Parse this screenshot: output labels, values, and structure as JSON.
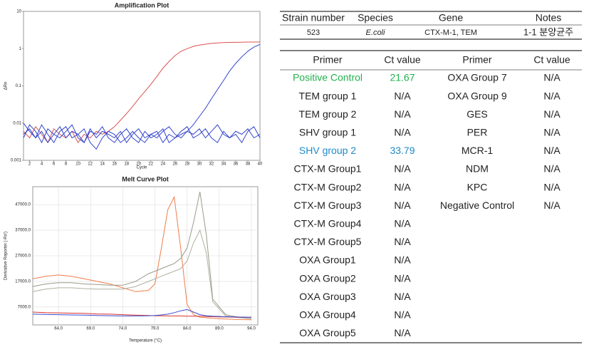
{
  "chart_data": [
    {
      "type": "line",
      "title": "Amplification Plot",
      "x_label": "Cycle",
      "y_label": "ΔRn",
      "log_y": true,
      "grid": false,
      "x": [
        1,
        2,
        3,
        4,
        5,
        6,
        7,
        8,
        9,
        10,
        11,
        12,
        13,
        14,
        15,
        16,
        17,
        18,
        19,
        20,
        21,
        22,
        23,
        24,
        25,
        26,
        27,
        28,
        29,
        30,
        31,
        32,
        33,
        34,
        35,
        36,
        37,
        38,
        39,
        40
      ],
      "xlim": [
        1,
        40
      ],
      "xticks": [
        2,
        4,
        6,
        8,
        10,
        12,
        14,
        16,
        18,
        20,
        22,
        24,
        26,
        28,
        30,
        32,
        34,
        36,
        38,
        40
      ],
      "ylim": [
        0.001,
        10
      ],
      "yticks": [
        0.001,
        0.01,
        0.1,
        1,
        10
      ],
      "series": [
        {
          "color": "#d9534f",
          "values": [
            0.006,
            0.004,
            0.008,
            0.005,
            0.003,
            0.007,
            0.005,
            0.004,
            0.006,
            0.003,
            0.005,
            0.004,
            0.006,
            0.005,
            0.006,
            0.008,
            0.012,
            0.018,
            0.028,
            0.045,
            0.07,
            0.11,
            0.18,
            0.3,
            0.45,
            0.65,
            0.85,
            1.0,
            1.15,
            1.25,
            1.32,
            1.38,
            1.42,
            1.45,
            1.47,
            1.48,
            1.49,
            1.5,
            1.5,
            1.5
          ]
        },
        {
          "color": "#3344cc",
          "values": [
            0.005,
            0.007,
            0.004,
            0.006,
            0.003,
            0.005,
            0.008,
            0.004,
            0.006,
            0.005,
            0.003,
            0.007,
            0.004,
            0.006,
            0.005,
            0.004,
            0.006,
            0.003,
            0.005,
            0.007,
            0.004,
            0.005,
            0.006,
            0.003,
            0.005,
            0.004,
            0.005,
            0.006,
            0.009,
            0.015,
            0.025,
            0.045,
            0.08,
            0.14,
            0.25,
            0.4,
            0.6,
            0.85,
            1.1,
            1.3
          ]
        },
        {
          "color": "#3344cc",
          "values": [
            0.01,
            0.006,
            0.004,
            0.009,
            0.005,
            0.003,
            0.006,
            0.008,
            0.004,
            0.005,
            0.007,
            0.003,
            0.002,
            0.004,
            0.006,
            0.005,
            0.003,
            0.004,
            0.006,
            0.004,
            0.003,
            0.005,
            0.004,
            0.006,
            0.008,
            0.005,
            0.004,
            0.006,
            0.005,
            0.007,
            0.004,
            0.006,
            0.009,
            0.005,
            0.004,
            0.006,
            0.005,
            0.007,
            0.004,
            0.005
          ]
        },
        {
          "color": "#3344cc",
          "values": [
            0.004,
            0.009,
            0.006,
            0.003,
            0.007,
            0.005,
            0.004,
            0.006,
            0.009,
            0.004,
            0.003,
            0.006,
            0.005,
            0.008,
            0.004,
            0.003,
            0.005,
            0.007,
            0.004,
            0.003,
            0.006,
            0.004,
            0.005,
            0.007,
            0.003,
            0.004,
            0.006,
            0.008,
            0.004,
            0.005,
            0.007,
            0.004,
            0.003,
            0.006,
            0.004,
            0.005,
            0.003,
            0.006,
            0.008,
            0.004
          ]
        }
      ]
    },
    {
      "type": "line",
      "title": "Melt Curve Plot",
      "x_label": "Temperature (°C)",
      "y_label": "Derivative Reporter (-Rn')",
      "log_y": false,
      "grid": true,
      "x": [
        60,
        62,
        64,
        66,
        68,
        70,
        72,
        74,
        76,
        78,
        79,
        80,
        81,
        82,
        83,
        84,
        85,
        86,
        87,
        88,
        90,
        92,
        94
      ],
      "xlim": [
        60,
        95
      ],
      "xticks": [
        {
          "value": 64,
          "label": "64.0"
        },
        {
          "value": 69,
          "label": "69.0"
        },
        {
          "value": 74,
          "label": "74.0"
        },
        {
          "value": 79,
          "label": "79.0"
        },
        {
          "value": 84,
          "label": "84.0"
        },
        {
          "value": 89,
          "label": "89.0"
        },
        {
          "value": 94,
          "label": "94.0"
        }
      ],
      "ylim": [
        0,
        54000
      ],
      "yticks": [
        {
          "value": 7000,
          "label": "7000.0"
        },
        {
          "value": 17000,
          "label": "17000.0"
        },
        {
          "value": 27000,
          "label": "27000.0"
        },
        {
          "value": 37000,
          "label": "37000.0"
        },
        {
          "value": 47000,
          "label": "47000.0"
        }
      ],
      "series": [
        {
          "color": "#f07c4a",
          "values": [
            18000,
            19000,
            19500,
            19000,
            18000,
            17000,
            16000,
            14500,
            13000,
            13500,
            16000,
            30000,
            45000,
            50000,
            30000,
            8000,
            4000,
            3000,
            2800,
            2600,
            2300,
            2100,
            2000
          ]
        },
        {
          "color": "#9a9a8a",
          "values": [
            15000,
            16000,
            16500,
            16500,
            16000,
            15800,
            15500,
            15500,
            17000,
            20000,
            21000,
            22000,
            23000,
            24000,
            26000,
            30000,
            40000,
            52000,
            35000,
            10000,
            4000,
            3000,
            2500
          ]
        },
        {
          "color": "#b0b0a0",
          "values": [
            13000,
            14000,
            14500,
            14500,
            14200,
            14000,
            14000,
            14000,
            15000,
            17000,
            18000,
            19000,
            20000,
            21000,
            22000,
            25000,
            32000,
            37000,
            28000,
            9000,
            3500,
            2800,
            2400
          ]
        },
        {
          "color": "#d9342b",
          "values": [
            5000,
            4800,
            4700,
            4600,
            4500,
            4300,
            4200,
            4000,
            3800,
            3700,
            3600,
            3600,
            3500,
            3500,
            3500,
            3400,
            3400,
            3400,
            3300,
            3200,
            3100,
            3000,
            3000
          ]
        },
        {
          "color": "#3a4bd0",
          "values": [
            4200,
            4100,
            4000,
            3900,
            3800,
            3700,
            3600,
            3500,
            3500,
            3600,
            3700,
            3900,
            4200,
            4800,
            5500,
            6000,
            5000,
            4000,
            3600,
            3400,
            3200,
            3100,
            3000
          ]
        }
      ]
    }
  ],
  "sample_table": {
    "headers": [
      "Strain number",
      "Species",
      "Gene",
      "Notes"
    ],
    "rows": [
      [
        "523",
        "E.coli",
        "CTX-M-1, TEM",
        "1-1 분양균주"
      ]
    ]
  },
  "primer_table": {
    "headers": [
      "Primer",
      "Ct value",
      "Primer",
      "Ct value"
    ],
    "left": [
      {
        "primer": "Positive Control",
        "ct": 21.67,
        "color": "#22b14c"
      },
      {
        "primer": "TEM group 1",
        "ct": "N/A"
      },
      {
        "primer": "TEM group 2",
        "ct": "N/A"
      },
      {
        "primer": "SHV group 1",
        "ct": "N/A"
      },
      {
        "primer": "SHV group 2",
        "ct": 33.79,
        "color": "#1e8ac8"
      },
      {
        "primer": "CTX-M Group1",
        "ct": "N/A"
      },
      {
        "primer": "CTX-M Group2",
        "ct": "N/A"
      },
      {
        "primer": "CTX-M Group3",
        "ct": "N/A"
      },
      {
        "primer": "CTX-M Group4",
        "ct": "N/A"
      },
      {
        "primer": "CTX-M Group5",
        "ct": "N/A"
      },
      {
        "primer": "OXA Group1",
        "ct": "N/A"
      },
      {
        "primer": "OXA Group2",
        "ct": "N/A"
      },
      {
        "primer": "OXA Group3",
        "ct": "N/A"
      },
      {
        "primer": "OXA Group4",
        "ct": "N/A"
      },
      {
        "primer": "OXA Group5",
        "ct": "N/A"
      }
    ],
    "right": [
      {
        "primer": "OXA Group 7",
        "ct": "N/A"
      },
      {
        "primer": "OXA Group 9",
        "ct": "N/A"
      },
      {
        "primer": "GES",
        "ct": "N/A"
      },
      {
        "primer": "PER",
        "ct": "N/A"
      },
      {
        "primer": "MCR-1",
        "ct": "N/A"
      },
      {
        "primer": "NDM",
        "ct": "N/A"
      },
      {
        "primer": "KPC",
        "ct": "N/A"
      },
      {
        "primer": "Negative Control",
        "ct": "N/A"
      }
    ]
  }
}
